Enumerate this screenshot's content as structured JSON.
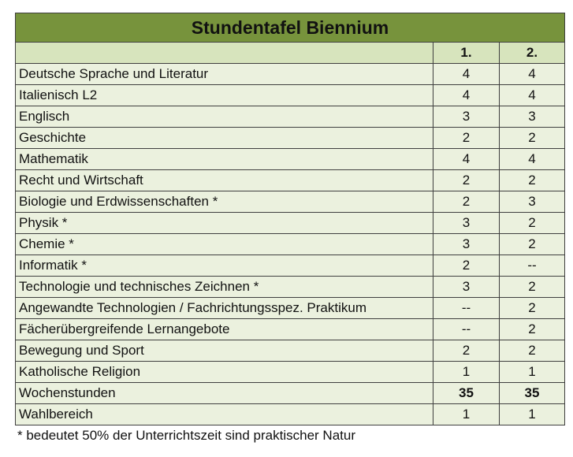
{
  "table": {
    "title": "Stundentafel Biennium",
    "header": {
      "subject": "",
      "year1": "1.",
      "year2": "2."
    },
    "rows": [
      {
        "subject": "Deutsche Sprache und Literatur",
        "y1": "4",
        "y2": "4"
      },
      {
        "subject": "Italienisch L2",
        "y1": "4",
        "y2": "4"
      },
      {
        "subject": "Englisch",
        "y1": "3",
        "y2": "3"
      },
      {
        "subject": "Geschichte",
        "y1": "2",
        "y2": "2"
      },
      {
        "subject": "Mathematik",
        "y1": "4",
        "y2": "4"
      },
      {
        "subject": "Recht und Wirtschaft",
        "y1": "2",
        "y2": "2"
      },
      {
        "subject": "Biologie und Erdwissenschaften *",
        "y1": "2",
        "y2": "3"
      },
      {
        "subject": "Physik *",
        "y1": "3",
        "y2": "2"
      },
      {
        "subject": "Chemie *",
        "y1": "3",
        "y2": "2"
      },
      {
        "subject": "Informatik *",
        "y1": "2",
        "y2": "--"
      },
      {
        "subject": "Technologie und technisches Zeichnen *",
        "y1": "3",
        "y2": "2"
      },
      {
        "subject": "Angewandte Technologien / Fachrichtungsspez. Praktikum",
        "y1": "--",
        "y2": "2"
      },
      {
        "subject": "Fächerübergreifende Lernangebote",
        "y1": "--",
        "y2": "2"
      },
      {
        "subject": "Bewegung und Sport",
        "y1": "2",
        "y2": "2"
      },
      {
        "subject": "Katholische Religion",
        "y1": "1",
        "y2": "1"
      }
    ],
    "total": {
      "subject": "Wochenstunden",
      "y1": "35",
      "y2": "35"
    },
    "elective": {
      "subject": "Wahlbereich",
      "y1": "1",
      "y2": "1"
    }
  },
  "footnote": "* bedeutet 50% der Unterrichtszeit sind praktischer Natur",
  "colors": {
    "title_bg": "#77933c",
    "header_bg": "#d7e4bd",
    "row_bg": "#ebf1de"
  }
}
